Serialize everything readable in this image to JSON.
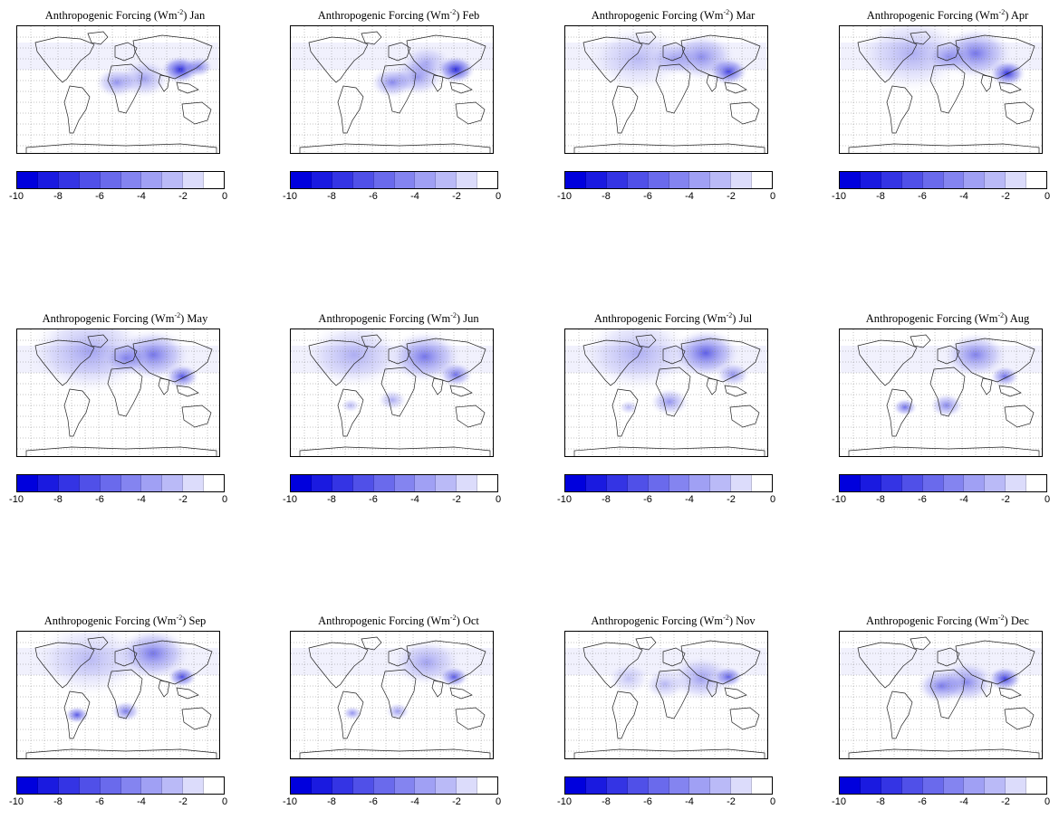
{
  "title_prefix": "Anthropogenic Forcing (Wm",
  "title_exp": "-2",
  "months": [
    "Jan",
    "Feb",
    "Mar",
    "Apr",
    "May",
    "Jun",
    "Jul",
    "Aug",
    "Sep",
    "Oct",
    "Nov",
    "Dec"
  ],
  "colorbar": {
    "colors": [
      "#0000dd",
      "#1a1ae0",
      "#3434e4",
      "#5050e8",
      "#6a6aec",
      "#8484f0",
      "#a0a0f4",
      "#babaf7",
      "#dcdcfb",
      "#ffffff"
    ],
    "tick_labels": [
      "-10",
      "-8",
      "-6",
      "-4",
      "-2",
      "0"
    ],
    "range": [
      -10,
      0
    ]
  }
}
